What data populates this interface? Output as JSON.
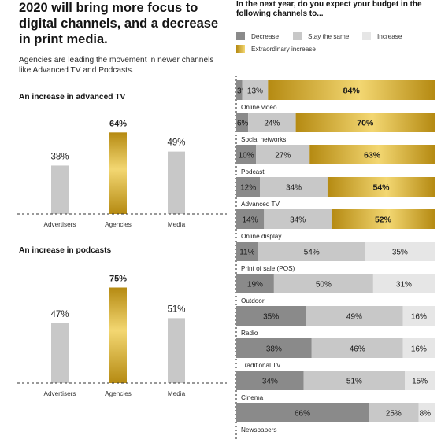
{
  "headline": "2020 will bring more focus to digital channels, and a decrease in print media.",
  "intro": "Agencies are leading the movement in newer channels like Advanced TV and Podcasts.",
  "colors": {
    "gold_light": "#F3D772",
    "gold_dark": "#B58A12",
    "gray_column": "#C8C8C8",
    "decrease": "#8A8A8A",
    "stay_same": "#C8C8C8",
    "increase": "#E6E6E6"
  },
  "question": "In the next year, do you expect your budget in the following channels to...",
  "legend": {
    "decrease": "Decrease",
    "stay_same": "Stay the same",
    "increase": "Increase",
    "extraordinary": "Extraordinary increase"
  },
  "chart_data": [
    {
      "type": "bar",
      "title": "An increase in advanced TV",
      "categories": [
        "Advertisers",
        "Agencies",
        "Media"
      ],
      "values": [
        38,
        64,
        49
      ],
      "labels": [
        "38%",
        "64%",
        "49%"
      ],
      "highlight": "Agencies"
    },
    {
      "type": "bar",
      "title": "An increase in podcasts",
      "categories": [
        "Advertisers",
        "Agencies",
        "Media"
      ],
      "values": [
        47,
        75,
        51
      ],
      "labels": [
        "47%",
        "75%",
        "51%"
      ],
      "highlight": "Agencies"
    },
    {
      "type": "bar",
      "stacked": true,
      "orientation": "horizontal",
      "categories": [
        "Online video",
        "Social networks",
        "Podcast",
        "Advanced TV",
        "Online display",
        "Print of sale (POS)",
        "Outdoor",
        "Radio",
        "Traditional TV",
        "Cinema",
        "Newspapers"
      ],
      "series": [
        {
          "name": "Decrease",
          "values": [
            3,
            6,
            10,
            12,
            14,
            11,
            19,
            35,
            38,
            34,
            66
          ]
        },
        {
          "name": "Stay the same",
          "values": [
            13,
            24,
            27,
            34,
            34,
            54,
            50,
            49,
            46,
            51,
            25
          ]
        },
        {
          "name": "Increase",
          "values": [
            null,
            null,
            null,
            null,
            null,
            35,
            31,
            16,
            16,
            15,
            8
          ]
        },
        {
          "name": "Extraordinary increase",
          "values": [
            84,
            70,
            63,
            54,
            52,
            null,
            null,
            null,
            null,
            null,
            null
          ]
        }
      ],
      "legend_position": "top"
    }
  ]
}
